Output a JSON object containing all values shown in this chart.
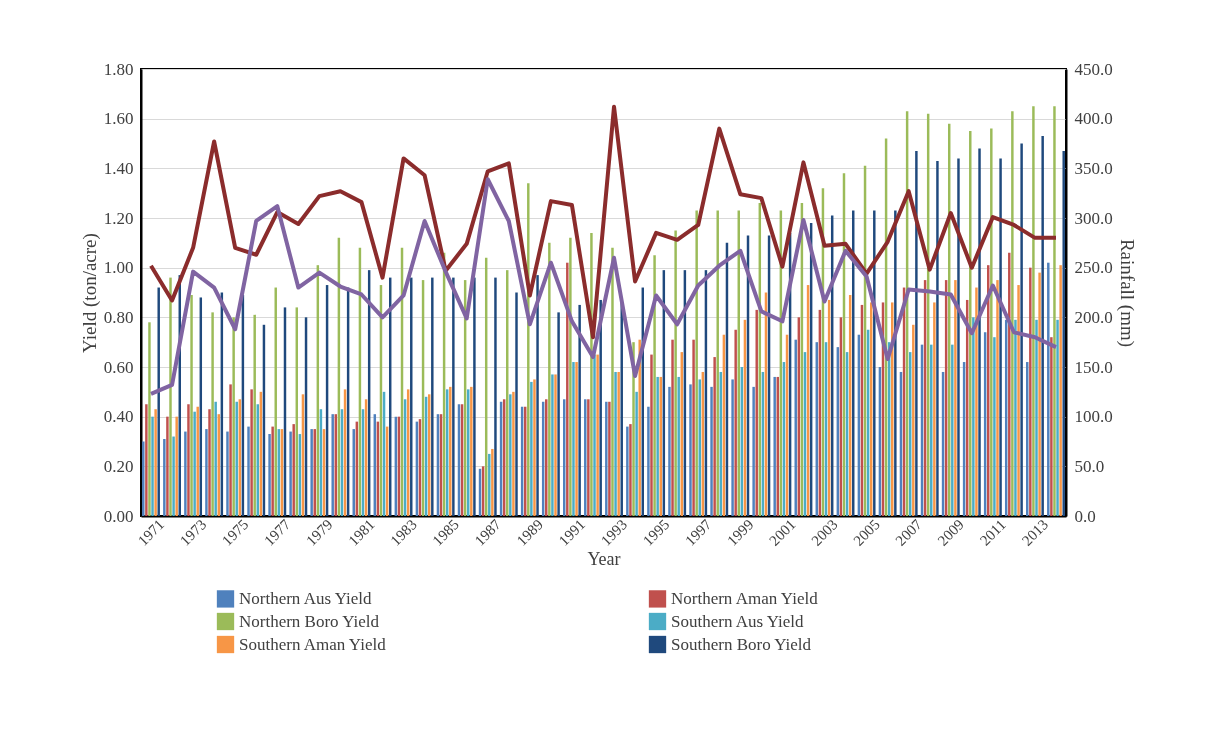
{
  "chart_data": {
    "type": "bar",
    "xlabel": "Year",
    "ylabel": "Yield (ton/acre)",
    "y2label": "Rainfall (mm)",
    "categories": [
      "1971",
      null,
      "1973",
      null,
      "1975",
      null,
      "1977",
      null,
      "1979",
      null,
      "1981",
      null,
      "1983",
      null,
      "1985",
      null,
      "1987",
      null,
      "1989",
      null,
      "1991",
      null,
      "1993",
      null,
      "1995",
      null,
      "1997",
      null,
      "1999",
      null,
      "2001",
      null,
      "2003",
      null,
      "2005",
      null,
      "2007",
      null,
      "2009",
      null,
      "2011",
      null,
      "2013",
      null
    ],
    "ylim": [
      0,
      1.8
    ],
    "yticks": [
      {
        "value": 0,
        "label": "0.00"
      },
      {
        "value": 0.2,
        "label": "0.20"
      },
      {
        "value": 0.4,
        "label": "0.40"
      },
      {
        "value": 0.6,
        "label": "0.60"
      },
      {
        "value": 0.8,
        "label": "0.80"
      },
      {
        "value": 1.0,
        "label": "1.00"
      },
      {
        "value": 1.2,
        "label": "1.20"
      },
      {
        "value": 1.4,
        "label": "1.40"
      },
      {
        "value": 1.6,
        "label": "1.60"
      },
      {
        "value": 1.8,
        "label": "1.80"
      }
    ],
    "y2lim": [
      0,
      450
    ],
    "y2ticks": [
      {
        "value": 0,
        "label": "0.0"
      },
      {
        "value": 50,
        "label": "50.0"
      },
      {
        "value": 100,
        "label": "100.0"
      },
      {
        "value": 150,
        "label": "150.0"
      },
      {
        "value": 200,
        "label": "200.0"
      },
      {
        "value": 250,
        "label": "250.0"
      },
      {
        "value": 300,
        "label": "300.0"
      },
      {
        "value": 350,
        "label": "350.0"
      },
      {
        "value": 400,
        "label": "400.0"
      },
      {
        "value": 450,
        "label": "450.0"
      }
    ],
    "grid": "y",
    "legend": "bottom",
    "series": [
      {
        "name": "Northern Aus Yield",
        "color": "#4f81bd",
        "values": [
          0.3,
          0.31,
          0.34,
          0.35,
          0.34,
          0.36,
          0.33,
          0.34,
          0.35,
          0.41,
          0.35,
          0.41,
          0.4,
          0.38,
          0.41,
          0.45,
          0.19,
          0.46,
          0.44,
          0.46,
          0.47,
          0.47,
          0.46,
          0.36,
          0.44,
          0.52,
          0.53,
          0.52,
          0.55,
          0.52,
          0.56,
          0.71,
          0.7,
          0.68,
          0.73,
          0.6,
          0.58,
          0.69,
          0.58,
          0.62,
          0.74,
          0.79,
          0.62,
          1.02
        ]
      },
      {
        "name": "Northern Aman Yield",
        "color": "#c0504d",
        "values": [
          0.45,
          0.4,
          0.45,
          0.43,
          0.53,
          0.51,
          0.36,
          0.37,
          0.35,
          0.41,
          0.38,
          0.38,
          0.4,
          0.39,
          0.41,
          0.45,
          0.2,
          0.47,
          0.44,
          0.47,
          1.02,
          0.47,
          0.46,
          0.37,
          0.65,
          0.71,
          0.71,
          0.64,
          0.75,
          0.83,
          0.56,
          0.8,
          0.83,
          0.8,
          0.85,
          0.86,
          0.92,
          0.95,
          0.95,
          0.87,
          1.01,
          1.06,
          1.0,
          0.72
        ]
      },
      {
        "name": "Northern Boro Yield",
        "color": "#9bbb59",
        "values": [
          0.78,
          0.96,
          0.89,
          0.82,
          0.8,
          0.81,
          0.92,
          0.84,
          1.01,
          1.12,
          1.08,
          0.93,
          1.08,
          0.95,
          1.06,
          0.95,
          1.04,
          0.99,
          1.34,
          1.1,
          1.12,
          1.14,
          1.08,
          0.7,
          1.05,
          1.15,
          1.23,
          1.23,
          1.23,
          1.26,
          1.23,
          1.26,
          1.32,
          1.38,
          1.41,
          1.52,
          1.63,
          1.62,
          1.58,
          1.55,
          1.56,
          1.63,
          1.65,
          1.65
        ]
      },
      {
        "name": "Southern Aus Yield",
        "color": "#4bacc6",
        "values": [
          0.4,
          0.32,
          0.42,
          0.46,
          0.46,
          0.45,
          0.35,
          0.33,
          0.43,
          0.43,
          0.43,
          0.5,
          0.47,
          0.48,
          0.51,
          0.51,
          0.25,
          0.49,
          0.54,
          0.57,
          0.62,
          0.65,
          0.58,
          0.5,
          0.56,
          0.56,
          0.55,
          0.58,
          0.6,
          0.58,
          0.62,
          0.66,
          0.7,
          0.66,
          0.75,
          0.7,
          0.66,
          0.69,
          0.69,
          0.8,
          0.72,
          0.79,
          0.79,
          0.79
        ]
      },
      {
        "name": "Southern Aman Yield",
        "color": "#f79646",
        "values": [
          0.43,
          0.4,
          0.44,
          0.41,
          0.47,
          0.5,
          0.35,
          0.49,
          0.35,
          0.51,
          0.47,
          0.36,
          0.51,
          0.49,
          0.52,
          0.52,
          0.27,
          0.5,
          0.55,
          0.57,
          0.62,
          0.65,
          0.58,
          0.71,
          0.56,
          0.66,
          0.58,
          0.73,
          0.79,
          0.9,
          0.73,
          0.93,
          0.87,
          0.89,
          0.86,
          0.86,
          0.77,
          0.86,
          0.95,
          0.92,
          0.95,
          0.93,
          0.98,
          1.01
        ]
      },
      {
        "name": "Southern Boro Yield",
        "color": "#1f497d",
        "values": [
          0.92,
          0.97,
          0.88,
          0.9,
          0.89,
          0.77,
          0.84,
          0.8,
          0.93,
          0.92,
          0.99,
          0.96,
          0.96,
          0.96,
          0.96,
          0.96,
          0.96,
          0.9,
          0.97,
          0.82,
          0.85,
          0.87,
          0.87,
          0.92,
          0.99,
          0.99,
          0.99,
          1.1,
          1.13,
          1.13,
          1.14,
          1.18,
          1.21,
          1.23,
          1.23,
          1.23,
          1.47,
          1.43,
          1.44,
          1.48,
          1.44,
          1.5,
          1.53,
          1.47
        ]
      },
      {
        "type": "line",
        "axis": "y2",
        "color": "#8b2c2c",
        "values": [
          252,
          217,
          270,
          377,
          270,
          263,
          306,
          294,
          322,
          327,
          316,
          240,
          360,
          343,
          247,
          274,
          347,
          355,
          222,
          317,
          313,
          180,
          412,
          236,
          285,
          278,
          293,
          390,
          324,
          320,
          251,
          356,
          272,
          274,
          244,
          276,
          327,
          248,
          305,
          250,
          301,
          293,
          280,
          280
        ]
      },
      {
        "type": "line",
        "axis": "y2",
        "color": "#8064a2",
        "values": [
          123,
          132,
          246,
          230,
          188,
          297,
          312,
          230,
          245,
          231,
          223,
          200,
          222,
          297,
          246,
          199,
          339,
          297,
          193,
          255,
          196,
          160,
          260,
          141,
          222,
          193,
          232,
          252,
          267,
          206,
          196,
          298,
          216,
          267,
          241,
          158,
          228,
          226,
          223,
          184,
          232,
          185,
          180,
          170
        ]
      }
    ]
  }
}
